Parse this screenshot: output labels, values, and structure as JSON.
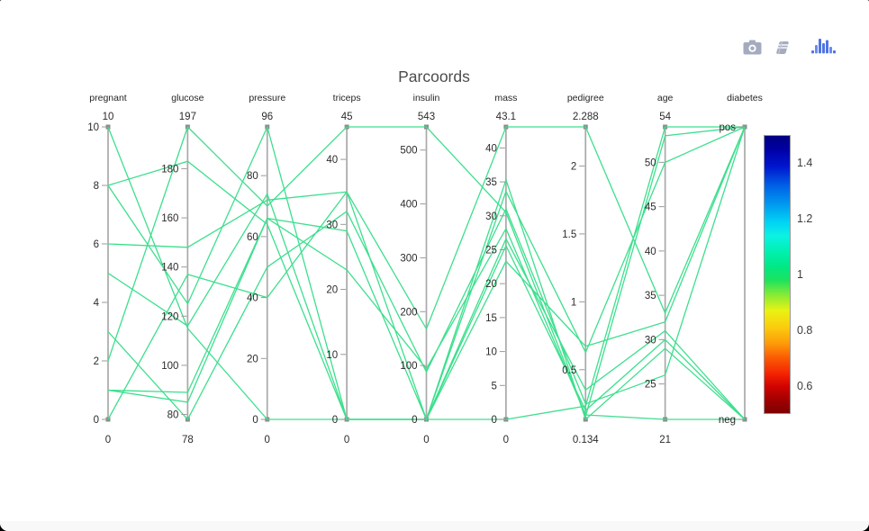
{
  "page": {
    "background": "#ffffff",
    "outside_background": "#000000"
  },
  "toolbar": {
    "icons": [
      {
        "name": "camera-icon",
        "color": "#a5abbf"
      },
      {
        "name": "notebook-icon",
        "color": "#a5abbf"
      },
      {
        "name": "plotly-logo-icon",
        "color": "#4f74e3"
      }
    ]
  },
  "chart_data": {
    "type": "parallel-coordinates",
    "title": "Parcoords",
    "title_color": "#4c4c4c",
    "line_color": "#3cdf8d",
    "axis_line_color": "#a9a9a9",
    "handle_color": "#8c8c8c",
    "tick_color": "#999999",
    "text_color": "#2b2b2b",
    "axes": [
      {
        "label": "pregnant",
        "max_label": "10",
        "min_label": "0",
        "range": [
          0,
          10
        ],
        "ticks": [
          0,
          2,
          4,
          6,
          8,
          10
        ]
      },
      {
        "label": "glucose",
        "max_label": "197",
        "min_label": "78",
        "range": [
          78,
          197
        ],
        "ticks": [
          80,
          100,
          120,
          140,
          160,
          180
        ]
      },
      {
        "label": "pressure",
        "max_label": "96",
        "min_label": "0",
        "range": [
          0,
          96
        ],
        "ticks": [
          0,
          20,
          40,
          60,
          80
        ]
      },
      {
        "label": "triceps",
        "max_label": "45",
        "min_label": "0",
        "range": [
          0,
          45
        ],
        "ticks": [
          0,
          10,
          20,
          30,
          40
        ]
      },
      {
        "label": "insulin",
        "max_label": "543",
        "min_label": "0",
        "range": [
          0,
          543
        ],
        "ticks": [
          0,
          100,
          200,
          300,
          400,
          500
        ]
      },
      {
        "label": "mass",
        "max_label": "43.1",
        "min_label": "0",
        "range": [
          0,
          43.1
        ],
        "ticks": [
          0,
          5,
          10,
          15,
          20,
          25,
          30,
          35,
          40
        ]
      },
      {
        "label": "pedigree",
        "max_label": "2.288",
        "min_label": "0.134",
        "range": [
          0.134,
          2.288
        ],
        "ticks": [
          0.5,
          1,
          1.5,
          2
        ]
      },
      {
        "label": "age",
        "max_label": "54",
        "min_label": "21",
        "range": [
          21,
          54
        ],
        "ticks": [
          25,
          30,
          35,
          40,
          45,
          50
        ]
      },
      {
        "label": "diabetes",
        "max_label": null,
        "min_label": null,
        "range": [
          0,
          1
        ],
        "ticks": [],
        "categorical": true,
        "categories": [
          "neg",
          "pos"
        ]
      }
    ],
    "rows": [
      [
        6,
        148,
        72,
        35,
        0,
        33.6,
        0.627,
        50,
        "pos"
      ],
      [
        1,
        85,
        66,
        29,
        0,
        26.6,
        0.351,
        31,
        "neg"
      ],
      [
        8,
        183,
        64,
        0,
        0,
        23.3,
        0.672,
        32,
        "pos"
      ],
      [
        1,
        89,
        66,
        23,
        94,
        28.1,
        0.167,
        21,
        "neg"
      ],
      [
        0,
        137,
        40,
        35,
        168,
        43.1,
        2.288,
        33,
        "pos"
      ],
      [
        5,
        116,
        74,
        0,
        0,
        25.6,
        0.201,
        30,
        "neg"
      ],
      [
        3,
        78,
        50,
        32,
        88,
        31.0,
        0.248,
        26,
        "pos"
      ],
      [
        10,
        115,
        0,
        0,
        0,
        35.3,
        0.134,
        29,
        "neg"
      ],
      [
        2,
        197,
        70,
        45,
        543,
        30.5,
        0.158,
        53,
        "pos"
      ],
      [
        8,
        125,
        96,
        0,
        0,
        0,
        0.232,
        54,
        "pos"
      ]
    ],
    "colorbar": {
      "range": [
        0.5,
        1.5
      ],
      "tick_values": [
        1.4,
        1.2,
        1,
        0.8,
        0.6
      ],
      "tick_labels": [
        "1.4",
        "1.2",
        "1",
        "0.8",
        "0.6"
      ],
      "stops": [
        [
          0,
          "#00007f"
        ],
        [
          5,
          "#0000a6"
        ],
        [
          11,
          "#0016ce"
        ],
        [
          18,
          "#0061e6"
        ],
        [
          25,
          "#009cf0"
        ],
        [
          31,
          "#00d2f4"
        ],
        [
          36,
          "#0cf2e4"
        ],
        [
          42,
          "#00f0ae"
        ],
        [
          47,
          "#00e886"
        ],
        [
          52,
          "#1ce25e"
        ],
        [
          57,
          "#80ea38"
        ],
        [
          63,
          "#e9f213"
        ],
        [
          69,
          "#fccc0e"
        ],
        [
          75,
          "#fd9a0a"
        ],
        [
          80,
          "#fb5b03"
        ],
        [
          86,
          "#f32203"
        ],
        [
          90,
          "#d30500"
        ],
        [
          95,
          "#a40000"
        ],
        [
          100,
          "#7e0000"
        ]
      ]
    }
  }
}
